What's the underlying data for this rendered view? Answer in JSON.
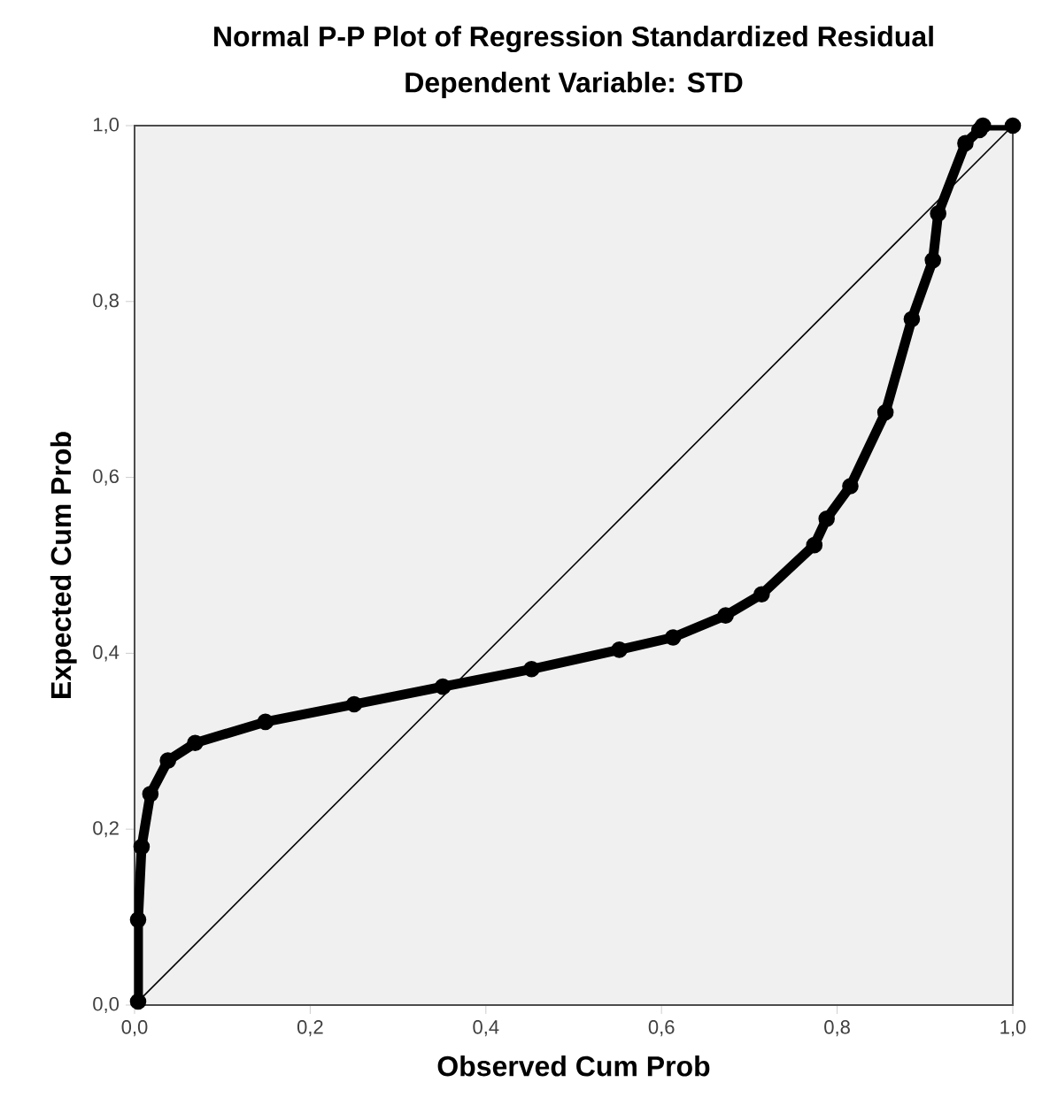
{
  "chart_data": {
    "type": "line",
    "title": "Normal P-P Plot of Regression Standardized Residual",
    "subtitle": "Dependent Variable: STD",
    "xlabel": "Observed Cum Prob",
    "ylabel": "Expected Cum Prob",
    "xlim": [
      0,
      1
    ],
    "ylim": [
      0,
      1
    ],
    "grid": false,
    "xticks": [
      {
        "value": 0,
        "label": "0,0"
      },
      {
        "value": 0.2,
        "label": "0,2"
      },
      {
        "value": 0.4,
        "label": "0,4"
      },
      {
        "value": 0.6,
        "label": "0,6"
      },
      {
        "value": 0.8,
        "label": "0,8"
      },
      {
        "value": 1,
        "label": "1,0"
      }
    ],
    "yticks": [
      {
        "value": 0,
        "label": "0,0"
      },
      {
        "value": 0.2,
        "label": "0,2"
      },
      {
        "value": 0.4,
        "label": "0,4"
      },
      {
        "value": 0.6,
        "label": "0,6"
      },
      {
        "value": 0.8,
        "label": "0,8"
      },
      {
        "value": 1,
        "label": "1,0"
      }
    ],
    "series": [
      {
        "marker": "none",
        "color": "#000000",
        "x": [
          0,
          0.5,
          1
        ],
        "values": [
          0,
          0.5,
          1
        ]
      },
      {
        "marker": "circle",
        "color": "#000000",
        "x": [
          0.004,
          0.004,
          0.008,
          0.018,
          0.038,
          0.069,
          0.149,
          0.25,
          0.351,
          0.452,
          0.552,
          0.613,
          0.673,
          0.714,
          0.774,
          0.788,
          0.815,
          0.855,
          0.885,
          0.909,
          0.915,
          0.946,
          0.962,
          0.966,
          1.0
        ],
        "values": [
          0.004,
          0.097,
          0.18,
          0.24,
          0.278,
          0.298,
          0.322,
          0.342,
          0.362,
          0.382,
          0.404,
          0.418,
          0.443,
          0.467,
          0.523,
          0.553,
          0.59,
          0.674,
          0.78,
          0.847,
          0.9,
          0.98,
          0.995,
          1.0,
          1.0
        ]
      }
    ]
  }
}
